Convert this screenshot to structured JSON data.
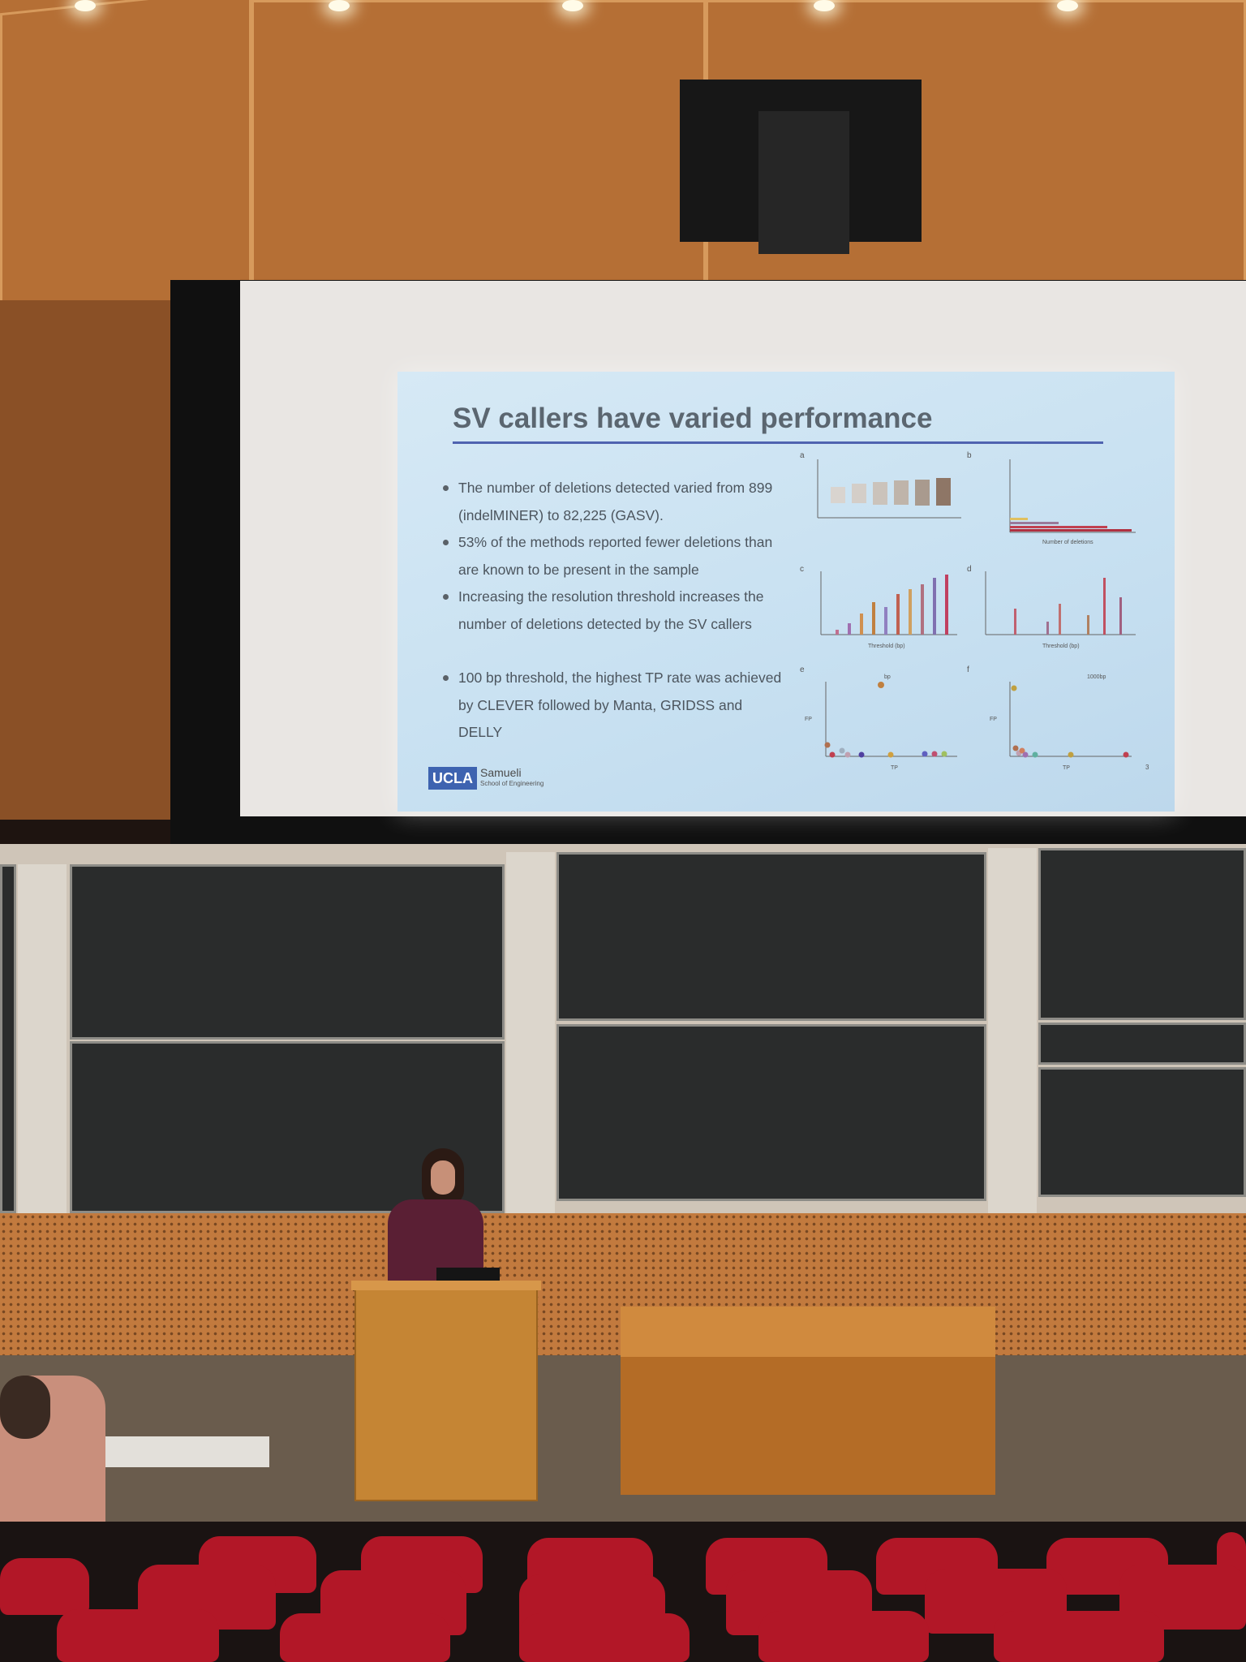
{
  "slide": {
    "title": "SV callers have varied performance",
    "bullets": [
      "The number of deletions detected varied from 899 (indelMINER) to 82,225 (GASV).",
      "53% of the methods reported fewer deletions than are known to be present in the sample",
      "Increasing the resolution threshold increases the number of deletions detected by the SV callers",
      "100 bp threshold, the highest TP rate was achieved by CLEVER  followed by Manta, GRIDSS and DELLY"
    ],
    "logo_badge": "UCLA",
    "logo_name": "Samueli",
    "logo_school": "School of Engineering",
    "figure_letters": [
      "a",
      "b",
      "c",
      "d",
      "e",
      "f"
    ],
    "panel_e_title": "bp",
    "panel_f_title": "1000bp",
    "axis_tp": "TP",
    "axis_fp": "FP",
    "axis_threshold": "Threshold (bp)",
    "axis_deletions": "Number of deletions",
    "page_number": "3"
  },
  "colors": {
    "slide_bg": "#c7e0f1",
    "title_rule": "#4f63b0",
    "ucla_blue": "#3e63b0",
    "seat_red": "#b21727",
    "wood": "#c27a3e"
  }
}
